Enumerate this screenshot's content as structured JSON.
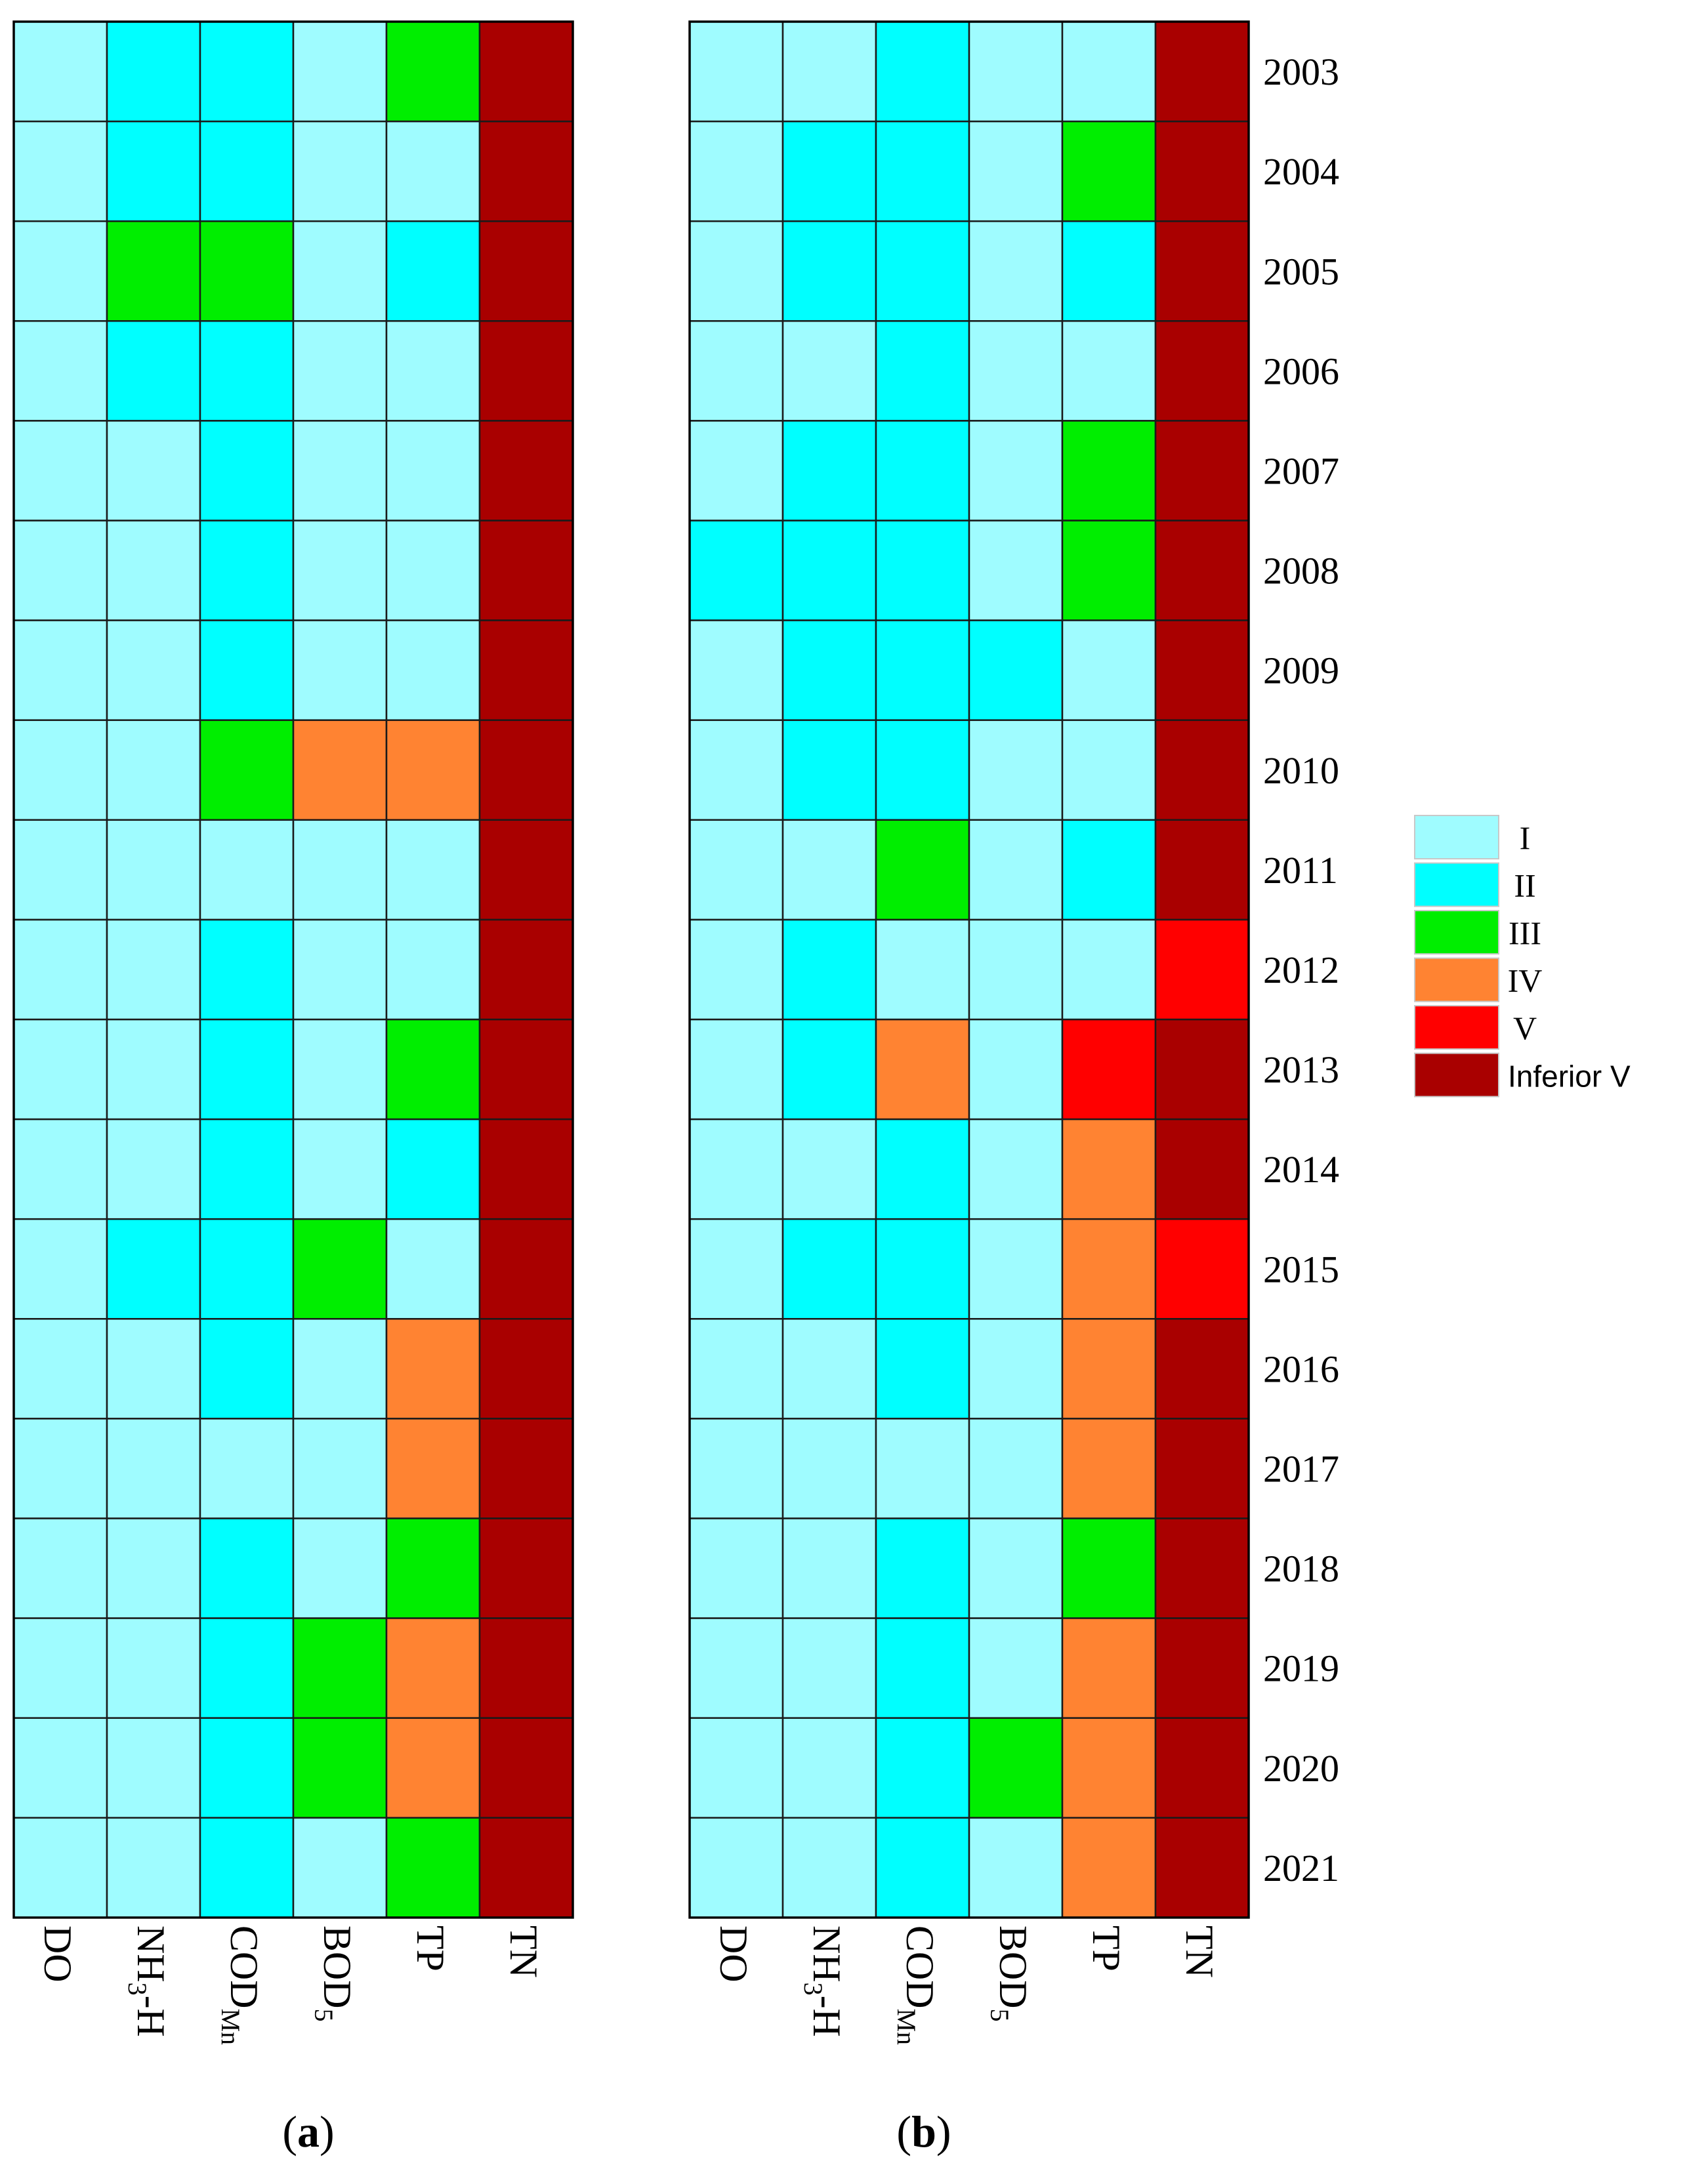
{
  "figure": {
    "colors": {
      "I": "#9ffcff",
      "II": "#00ffff",
      "III": "#00ee00",
      "IV": "#ff8332",
      "V": "#ff0000",
      "Inferior V": "#a90000"
    }
  },
  "chart_data": [
    {
      "type": "heatmap",
      "panel_label": "a",
      "columns": [
        "DO",
        "NH3-H",
        "CODMn",
        "BOD5",
        "TP",
        "TN"
      ],
      "column_labels": [
        {
          "main": "DO",
          "sub": ""
        },
        {
          "main": "NH",
          "sub": "3",
          "tail": "-H"
        },
        {
          "main": "COD",
          "sub": "Mn"
        },
        {
          "main": "BOD",
          "sub": "5"
        },
        {
          "main": "TP",
          "sub": ""
        },
        {
          "main": "TN",
          "sub": ""
        }
      ],
      "rows": [
        "2003",
        "2004",
        "2005",
        "2006",
        "2007",
        "2008",
        "2009",
        "2010",
        "2011",
        "2012",
        "2013",
        "2014",
        "2015",
        "2016",
        "2017",
        "2018",
        "2019",
        "2020",
        "2021"
      ],
      "values": [
        [
          "I",
          "II",
          "II",
          "I",
          "III",
          "Inferior V"
        ],
        [
          "I",
          "II",
          "II",
          "I",
          "I",
          "Inferior V"
        ],
        [
          "I",
          "III",
          "III",
          "I",
          "II",
          "Inferior V"
        ],
        [
          "I",
          "II",
          "II",
          "I",
          "I",
          "Inferior V"
        ],
        [
          "I",
          "I",
          "II",
          "I",
          "I",
          "Inferior V"
        ],
        [
          "I",
          "I",
          "II",
          "I",
          "I",
          "Inferior V"
        ],
        [
          "I",
          "I",
          "II",
          "I",
          "I",
          "Inferior V"
        ],
        [
          "I",
          "I",
          "III",
          "IV",
          "IV",
          "Inferior V"
        ],
        [
          "I",
          "I",
          "I",
          "I",
          "I",
          "Inferior V"
        ],
        [
          "I",
          "I",
          "II",
          "I",
          "I",
          "Inferior V"
        ],
        [
          "I",
          "I",
          "II",
          "I",
          "III",
          "Inferior V"
        ],
        [
          "I",
          "I",
          "II",
          "I",
          "II",
          "Inferior V"
        ],
        [
          "I",
          "II",
          "II",
          "III",
          "I",
          "Inferior V"
        ],
        [
          "I",
          "I",
          "II",
          "I",
          "IV",
          "Inferior V"
        ],
        [
          "I",
          "I",
          "I",
          "I",
          "IV",
          "Inferior V"
        ],
        [
          "I",
          "I",
          "II",
          "I",
          "III",
          "Inferior V"
        ],
        [
          "I",
          "I",
          "II",
          "III",
          "IV",
          "Inferior V"
        ],
        [
          "I",
          "I",
          "II",
          "III",
          "IV",
          "Inferior V"
        ],
        [
          "I",
          "I",
          "II",
          "I",
          "III",
          "Inferior V"
        ]
      ]
    },
    {
      "type": "heatmap",
      "panel_label": "b",
      "columns": [
        "DO",
        "NH3-H",
        "CODMn",
        "BOD5",
        "TP",
        "TN"
      ],
      "column_labels": [
        {
          "main": "DO",
          "sub": ""
        },
        {
          "main": "NH",
          "sub": "3",
          "tail": "-H"
        },
        {
          "main": "COD",
          "sub": "Mn"
        },
        {
          "main": "BOD",
          "sub": "5"
        },
        {
          "main": "TP",
          "sub": ""
        },
        {
          "main": "TN",
          "sub": ""
        }
      ],
      "rows": [
        "2003",
        "2004",
        "2005",
        "2006",
        "2007",
        "2008",
        "2009",
        "2010",
        "2011",
        "2012",
        "2013",
        "2014",
        "2015",
        "2016",
        "2017",
        "2018",
        "2019",
        "2020",
        "2021"
      ],
      "values": [
        [
          "I",
          "I",
          "II",
          "I",
          "I",
          "Inferior V"
        ],
        [
          "I",
          "II",
          "II",
          "I",
          "III",
          "Inferior V"
        ],
        [
          "I",
          "II",
          "II",
          "I",
          "II",
          "Inferior V"
        ],
        [
          "I",
          "I",
          "II",
          "I",
          "I",
          "Inferior V"
        ],
        [
          "I",
          "II",
          "II",
          "I",
          "III",
          "Inferior V"
        ],
        [
          "II",
          "II",
          "II",
          "I",
          "III",
          "Inferior V"
        ],
        [
          "I",
          "II",
          "II",
          "II",
          "I",
          "Inferior V"
        ],
        [
          "I",
          "II",
          "II",
          "I",
          "I",
          "Inferior V"
        ],
        [
          "I",
          "I",
          "III",
          "I",
          "II",
          "Inferior V"
        ],
        [
          "I",
          "II",
          "I",
          "I",
          "I",
          "V"
        ],
        [
          "I",
          "II",
          "IV",
          "I",
          "V",
          "Inferior V"
        ],
        [
          "I",
          "I",
          "II",
          "I",
          "IV",
          "Inferior V"
        ],
        [
          "I",
          "II",
          "II",
          "I",
          "IV",
          "V"
        ],
        [
          "I",
          "I",
          "II",
          "I",
          "IV",
          "Inferior V"
        ],
        [
          "I",
          "I",
          "I",
          "I",
          "IV",
          "Inferior V"
        ],
        [
          "I",
          "I",
          "II",
          "I",
          "III",
          "Inferior V"
        ],
        [
          "I",
          "I",
          "II",
          "I",
          "IV",
          "Inferior V"
        ],
        [
          "I",
          "I",
          "II",
          "III",
          "IV",
          "Inferior V"
        ],
        [
          "I",
          "I",
          "II",
          "I",
          "IV",
          "Inferior V"
        ]
      ]
    }
  ],
  "legend": {
    "placement": "right",
    "entries": [
      "I",
      "II",
      "III",
      "IV",
      "V",
      "Inferior V"
    ]
  }
}
